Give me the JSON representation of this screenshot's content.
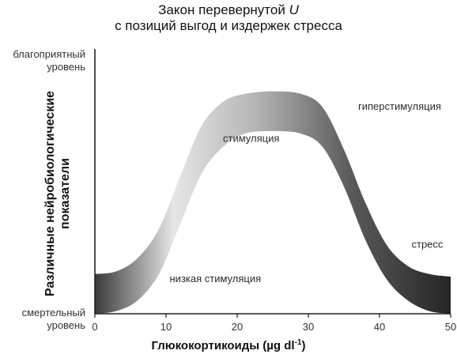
{
  "title_line1": "Закон перевернутой",
  "title_italic": "U",
  "title_line2": "с позиций выгод и издержек стресса",
  "ylabel_line1": "Различные нейробиологические",
  "ylabel_line2": "показатели",
  "ytick_top_line1": "благоприятный",
  "ytick_top_line2": "уровень",
  "ytick_bottom_line1": "смертельный",
  "ytick_bottom_line2": "уровень",
  "xlabel_main": "Глюкокортикоиды (µg dl",
  "xlabel_exp": "-1",
  "xlabel_end": ")",
  "colors": {
    "band_light": "#e6e6e6",
    "band_dark": "#2b2b2b",
    "axis": "#222222"
  },
  "chart_data": {
    "type": "area",
    "xlim": [
      0,
      50
    ],
    "xticks": [
      "0",
      "10",
      "20",
      "30",
      "40",
      "50"
    ],
    "band_upper": [
      [
        0,
        0.15
      ],
      [
        3,
        0.16
      ],
      [
        6,
        0.21
      ],
      [
        9,
        0.32
      ],
      [
        12,
        0.52
      ],
      [
        15,
        0.71
      ],
      [
        18,
        0.8
      ],
      [
        21,
        0.83
      ],
      [
        25,
        0.84
      ],
      [
        29,
        0.83
      ],
      [
        32,
        0.78
      ],
      [
        35,
        0.62
      ],
      [
        38,
        0.42
      ],
      [
        41,
        0.26
      ],
      [
        44,
        0.18
      ],
      [
        47,
        0.15
      ],
      [
        50,
        0.14
      ]
    ],
    "band_lower": [
      [
        0,
        0.0
      ],
      [
        3,
        0.01
      ],
      [
        6,
        0.05
      ],
      [
        9,
        0.15
      ],
      [
        12,
        0.34
      ],
      [
        15,
        0.53
      ],
      [
        18,
        0.63
      ],
      [
        21,
        0.68
      ],
      [
        25,
        0.69
      ],
      [
        29,
        0.68
      ],
      [
        32,
        0.63
      ],
      [
        35,
        0.48
      ],
      [
        38,
        0.28
      ],
      [
        41,
        0.13
      ],
      [
        44,
        0.05
      ],
      [
        47,
        0.01
      ],
      [
        50,
        0.0
      ]
    ],
    "annotations": [
      {
        "text": "низкая стимуляция",
        "x": 10.5,
        "y": 0.12
      },
      {
        "text": "стимуляция",
        "x": 18,
        "y": 0.65
      },
      {
        "text": "гиперстимуляция",
        "x": 37,
        "y": 0.77
      },
      {
        "text": "стресс",
        "x": 44.5,
        "y": 0.25
      }
    ]
  }
}
